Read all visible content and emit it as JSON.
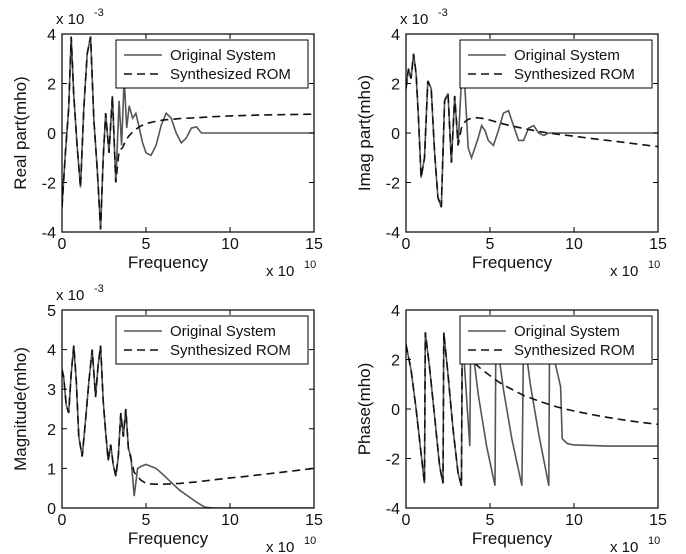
{
  "chart_data": [
    {
      "type": "line",
      "ylabel": "Real part(mho)",
      "xlabel": "Frequency",
      "x_multiplier": "x 10",
      "x_exponent": "10",
      "y_multiplier": "x 10",
      "y_exponent": "-3",
      "xlim": [
        0,
        15
      ],
      "ylim": [
        -4,
        4
      ],
      "xticks": [
        "0",
        "5",
        "10",
        "15"
      ],
      "yticks": [
        "-4",
        "-2",
        "0",
        "2",
        "4"
      ],
      "legend_position": "top-right",
      "series": [
        {
          "name": "Original System",
          "style": "solid",
          "x": [
            0,
            0.2,
            0.4,
            0.55,
            0.7,
            0.9,
            1.1,
            1.3,
            1.5,
            1.7,
            1.9,
            2.1,
            2.3,
            2.45,
            2.6,
            2.8,
            3.0,
            3.2,
            3.4,
            3.55,
            3.7,
            3.85,
            4.0,
            4.2,
            4.4,
            4.6,
            4.8,
            5.0,
            5.3,
            5.6,
            5.9,
            6.2,
            6.5,
            6.8,
            7.1,
            7.4,
            7.7,
            8.0,
            8.3,
            8.6,
            9.0,
            10,
            12,
            15
          ],
          "y": [
            -3.0,
            -0.8,
            1.0,
            3.9,
            1.5,
            -0.5,
            -2.2,
            1.0,
            3.2,
            3.9,
            0.5,
            -1.5,
            -3.9,
            -1.0,
            0.8,
            -0.8,
            1.5,
            -2.0,
            1.3,
            -0.5,
            2.2,
            0.2,
            1.1,
            0.6,
            0.8,
            0.2,
            -0.4,
            -0.8,
            -0.9,
            -0.5,
            0.3,
            0.8,
            0.6,
            0.0,
            -0.4,
            -0.2,
            0.2,
            0.25,
            0.0,
            0.0,
            0.0,
            0.0,
            0.0,
            0.0
          ]
        },
        {
          "name": "Synthesized ROM",
          "style": "dashed",
          "x": [
            0,
            0.2,
            0.4,
            0.55,
            0.7,
            0.9,
            1.1,
            1.3,
            1.5,
            1.7,
            1.9,
            2.1,
            2.3,
            2.45,
            2.6,
            2.8,
            3.0,
            3.2,
            3.4,
            3.6,
            3.8,
            4.0,
            4.3,
            4.6,
            5.0,
            5.5,
            6,
            7,
            8,
            9,
            10,
            11,
            12,
            13,
            14,
            15
          ],
          "y": [
            -3.0,
            -0.8,
            1.0,
            3.9,
            1.5,
            -0.5,
            -2.2,
            1.0,
            3.2,
            3.9,
            0.5,
            -1.5,
            -3.9,
            -1.0,
            0.8,
            -0.8,
            1.5,
            -2.0,
            -0.7,
            -0.6,
            -0.3,
            -0.1,
            0.1,
            0.25,
            0.38,
            0.46,
            0.52,
            0.58,
            0.62,
            0.66,
            0.69,
            0.71,
            0.73,
            0.74,
            0.75,
            0.76
          ]
        }
      ]
    },
    {
      "type": "line",
      "ylabel": "Imag part(mho)",
      "xlabel": "Frequency",
      "x_multiplier": "x 10",
      "x_exponent": "10",
      "y_multiplier": "x 10",
      "y_exponent": "-3",
      "xlim": [
        0,
        15
      ],
      "ylim": [
        -4,
        4
      ],
      "xticks": [
        "0",
        "5",
        "10",
        "15"
      ],
      "yticks": [
        "-4",
        "-2",
        "0",
        "2",
        "4"
      ],
      "legend_position": "top-right",
      "series": [
        {
          "name": "Original System",
          "style": "solid",
          "x": [
            0,
            0.15,
            0.3,
            0.45,
            0.6,
            0.75,
            0.9,
            1.1,
            1.3,
            1.5,
            1.7,
            1.9,
            2.1,
            2.3,
            2.5,
            2.7,
            2.9,
            3.1,
            3.3,
            3.5,
            3.7,
            3.9,
            4.1,
            4.3,
            4.5,
            4.7,
            4.9,
            5.2,
            5.5,
            5.8,
            6.1,
            6.4,
            6.7,
            7.0,
            7.3,
            7.6,
            7.9,
            8.2,
            8.5,
            9,
            10,
            12,
            15
          ],
          "y": [
            1.8,
            2.6,
            2.2,
            3.2,
            2.4,
            0.5,
            -1.8,
            -1.0,
            2.1,
            1.8,
            -0.8,
            -2.6,
            -3.0,
            1.3,
            1.6,
            -1.2,
            1.5,
            -0.5,
            2.1,
            1.9,
            -0.6,
            -1.0,
            -0.6,
            -0.2,
            0.3,
            0.1,
            -0.3,
            -0.5,
            0.1,
            0.8,
            0.9,
            0.3,
            -0.3,
            -0.3,
            0.2,
            0.3,
            0.0,
            -0.1,
            0.0,
            0.0,
            0.0,
            0.0,
            0.0
          ]
        },
        {
          "name": "Synthesized ROM",
          "style": "dashed",
          "x": [
            0,
            0.15,
            0.3,
            0.45,
            0.6,
            0.75,
            0.9,
            1.1,
            1.3,
            1.5,
            1.7,
            1.9,
            2.1,
            2.3,
            2.5,
            2.7,
            2.9,
            3.1,
            3.3,
            3.5,
            3.7,
            3.9,
            4.2,
            4.5,
            5,
            5.5,
            6,
            7,
            8,
            9,
            10,
            11,
            12,
            13,
            14,
            15
          ],
          "y": [
            1.8,
            2.6,
            2.2,
            3.2,
            2.4,
            0.5,
            -1.8,
            -1.0,
            2.1,
            1.8,
            -0.8,
            -2.6,
            -3.0,
            1.3,
            1.6,
            -1.2,
            1.5,
            -0.5,
            0.2,
            0.45,
            0.55,
            0.6,
            0.62,
            0.6,
            0.52,
            0.42,
            0.33,
            0.18,
            0.05,
            -0.05,
            -0.13,
            -0.22,
            -0.3,
            -0.38,
            -0.47,
            -0.55
          ]
        }
      ]
    },
    {
      "type": "line",
      "ylabel": "Magnitude(mho)",
      "xlabel": "Frequency",
      "x_multiplier": "x 10",
      "x_exponent": "10",
      "y_multiplier": "x 10",
      "y_exponent": "-3",
      "xlim": [
        0,
        15
      ],
      "ylim": [
        0,
        5
      ],
      "xticks": [
        "0",
        "5",
        "10",
        "15"
      ],
      "yticks": [
        "0",
        "1",
        "2",
        "3",
        "4",
        "5"
      ],
      "legend_position": "top-right",
      "series": [
        {
          "name": "Original System",
          "style": "solid",
          "x": [
            0,
            0.1,
            0.25,
            0.4,
            0.55,
            0.7,
            0.85,
            1.0,
            1.2,
            1.4,
            1.6,
            1.8,
            2.0,
            2.15,
            2.3,
            2.45,
            2.6,
            2.75,
            2.9,
            3.05,
            3.2,
            3.35,
            3.5,
            3.65,
            3.8,
            3.95,
            4.1,
            4.3,
            4.5,
            4.7,
            5.0,
            5.3,
            5.6,
            6.0,
            6.5,
            7.0,
            7.5,
            8.0,
            8.5,
            9.0,
            10,
            12,
            15
          ],
          "y": [
            3.5,
            3.3,
            2.6,
            2.4,
            3.4,
            4.1,
            3.2,
            1.8,
            1.3,
            2.2,
            3.2,
            4.0,
            2.8,
            3.6,
            4.1,
            2.7,
            1.9,
            1.2,
            1.6,
            1.1,
            0.8,
            1.3,
            2.4,
            1.8,
            2.5,
            1.5,
            1.3,
            0.3,
            1.0,
            1.05,
            1.1,
            1.05,
            1.0,
            0.85,
            0.65,
            0.45,
            0.3,
            0.15,
            0.02,
            0.0,
            0.0,
            0.0,
            0.0
          ]
        },
        {
          "name": "Synthesized ROM",
          "style": "dashed",
          "x": [
            0,
            0.1,
            0.25,
            0.4,
            0.55,
            0.7,
            0.85,
            1.0,
            1.2,
            1.4,
            1.6,
            1.8,
            2.0,
            2.15,
            2.3,
            2.45,
            2.6,
            2.75,
            2.9,
            3.05,
            3.2,
            3.35,
            3.5,
            3.65,
            3.8,
            3.95,
            4.3,
            4.7,
            5,
            5.5,
            6,
            7,
            8,
            9,
            10,
            11,
            12,
            13,
            14,
            15
          ],
          "y": [
            3.5,
            3.3,
            2.6,
            2.4,
            3.4,
            4.1,
            3.2,
            1.8,
            1.3,
            2.2,
            3.2,
            4.0,
            2.8,
            3.6,
            4.1,
            2.7,
            1.9,
            1.2,
            1.6,
            1.1,
            0.8,
            1.3,
            2.4,
            1.8,
            2.5,
            1.5,
            0.9,
            0.7,
            0.62,
            0.6,
            0.6,
            0.62,
            0.66,
            0.71,
            0.76,
            0.8,
            0.85,
            0.9,
            0.95,
            1.0
          ]
        }
      ]
    },
    {
      "type": "line",
      "ylabel": "Phase(mho)",
      "xlabel": "Frequency",
      "x_multiplier": "x 10",
      "x_exponent": "10",
      "xlim": [
        0,
        15
      ],
      "ylim": [
        -4,
        4
      ],
      "xticks": [
        "0",
        "5",
        "10",
        "15"
      ],
      "yticks": [
        "-4",
        "-2",
        "0",
        "2",
        "4"
      ],
      "legend_position": "top-right",
      "series": [
        {
          "name": "Original System",
          "style": "solid",
          "x": [
            0,
            0.3,
            0.6,
            0.9,
            1.1,
            1.15,
            1.4,
            1.7,
            2.0,
            2.2,
            2.25,
            2.5,
            2.8,
            3.1,
            3.3,
            3.35,
            3.6,
            3.8,
            3.85,
            4.3,
            4.8,
            5.3,
            5.35,
            5.8,
            6.3,
            6.9,
            7.0,
            7.4,
            7.9,
            8.5,
            8.55,
            8.9,
            9.2,
            9.3,
            9.6,
            10,
            12,
            15
          ],
          "y": [
            2.6,
            1.6,
            0.0,
            -1.8,
            -3.0,
            3.1,
            1.7,
            -0.3,
            -2.3,
            -3.0,
            3.1,
            1.4,
            -0.8,
            -2.6,
            -3.1,
            3.1,
            0.5,
            -1.5,
            3.1,
            0.6,
            -1.5,
            -3.1,
            3.1,
            0.8,
            -1.2,
            -3.1,
            3.1,
            1.0,
            -1.0,
            -3.1,
            3.1,
            1.8,
            0.9,
            -1.2,
            -1.4,
            -1.45,
            -1.5,
            -1.5
          ]
        },
        {
          "name": "Synthesized ROM",
          "style": "dashed",
          "x": [
            0,
            0.3,
            0.6,
            0.9,
            1.1,
            1.15,
            1.4,
            1.7,
            2.0,
            2.2,
            2.25,
            2.5,
            2.8,
            3.1,
            3.3,
            3.35,
            3.7,
            4,
            4.5,
            5,
            5.5,
            6,
            7,
            8,
            9,
            10,
            11,
            12,
            13,
            14,
            15
          ],
          "y": [
            2.6,
            1.6,
            0.0,
            -1.8,
            -3.0,
            3.1,
            1.7,
            -0.3,
            -2.3,
            -3.0,
            3.1,
            1.4,
            -0.8,
            -2.6,
            -3.1,
            3.1,
            2.2,
            1.9,
            1.6,
            1.35,
            1.1,
            0.9,
            0.55,
            0.3,
            0.08,
            -0.08,
            -0.22,
            -0.34,
            -0.45,
            -0.54,
            -0.62
          ]
        }
      ]
    }
  ]
}
